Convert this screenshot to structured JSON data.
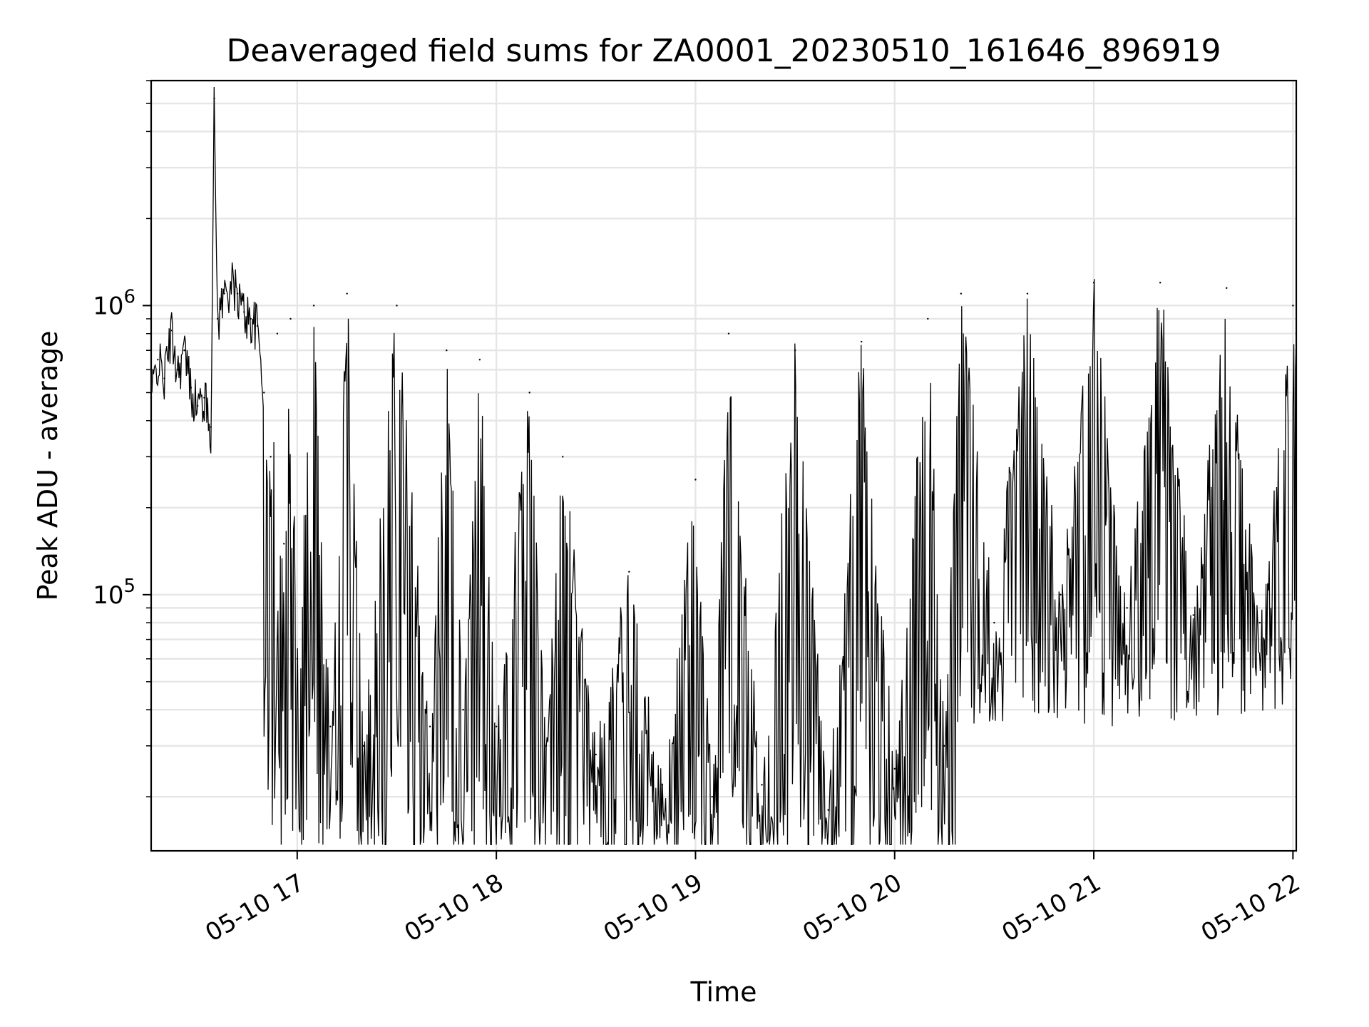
{
  "chart_data": {
    "type": "line",
    "title": "Deaveraged field sums for ZA0001_20230510_161646_896919",
    "xlabel": "Time",
    "ylabel": "Peak ADU - average",
    "xlim": [
      "2023-05-10 16:16",
      "2023-05-10 22:01"
    ],
    "ylim": [
      13000,
      6000000
    ],
    "yscale": "log",
    "grid": true,
    "x_tick_labels": [
      "05-10 17",
      "05-10 18",
      "05-10 19",
      "05-10 20",
      "05-10 21",
      "05-10 22"
    ],
    "y_tick_labels": [
      {
        "base": "10",
        "exp": "5",
        "value": 100000
      },
      {
        "base": "10",
        "exp": "6",
        "value": 1000000
      }
    ],
    "line_color": "#000000",
    "series": [
      {
        "points": [
          [
            "2023-05-10 16:16",
            480000
          ],
          [
            "2023-05-10 16:18",
            650000
          ],
          [
            "2023-05-10 16:20",
            560000
          ],
          [
            "2023-05-10 16:22",
            820000
          ],
          [
            "2023-05-10 16:24",
            600000
          ],
          [
            "2023-05-10 16:26",
            700000
          ],
          [
            "2023-05-10 16:28",
            520000
          ],
          [
            "2023-05-10 16:30",
            450000
          ],
          [
            "2023-05-10 16:32",
            480000
          ],
          [
            "2023-05-10 16:34",
            380000
          ],
          [
            "2023-05-10 16:35",
            5200000
          ],
          [
            "2023-05-10 16:36",
            900000
          ],
          [
            "2023-05-10 16:38",
            1100000
          ],
          [
            "2023-05-10 16:40",
            1200000
          ],
          [
            "2023-05-10 16:42",
            1100000
          ],
          [
            "2023-05-10 16:44",
            950000
          ],
          [
            "2023-05-10 16:46",
            900000
          ],
          [
            "2023-05-10 16:48",
            850000
          ],
          [
            "2023-05-10 16:50",
            500000
          ],
          [
            "2023-05-10 16:52",
            300000
          ],
          [
            "2023-05-10 16:54",
            800000
          ],
          [
            "2023-05-10 16:56",
            150000
          ],
          [
            "2023-05-10 16:58",
            900000
          ],
          [
            "2023-05-10 17:00",
            60000
          ],
          [
            "2023-05-10 17:05",
            1000000
          ],
          [
            "2023-05-10 17:10",
            35000
          ],
          [
            "2023-05-10 17:15",
            1100000
          ],
          [
            "2023-05-10 17:20",
            30000
          ],
          [
            "2023-05-10 17:30",
            1000000
          ],
          [
            "2023-05-10 17:40",
            35000
          ],
          [
            "2023-05-10 17:45",
            700000
          ],
          [
            "2023-05-10 17:50",
            40000
          ],
          [
            "2023-05-10 17:55",
            650000
          ],
          [
            "2023-05-10 18:00",
            35000
          ],
          [
            "2023-05-10 18:10",
            500000
          ],
          [
            "2023-05-10 18:15",
            30000
          ],
          [
            "2023-05-10 18:20",
            300000
          ],
          [
            "2023-05-10 18:30",
            28000
          ],
          [
            "2023-05-10 18:40",
            120000
          ],
          [
            "2023-05-10 18:50",
            22000
          ],
          [
            "2023-05-10 19:00",
            250000
          ],
          [
            "2023-05-10 19:05",
            20000
          ],
          [
            "2023-05-10 19:10",
            800000
          ],
          [
            "2023-05-10 19:20",
            22000
          ],
          [
            "2023-05-10 19:30",
            700000
          ],
          [
            "2023-05-10 19:40",
            18000
          ],
          [
            "2023-05-10 19:50",
            750000
          ],
          [
            "2023-05-10 20:00",
            25000
          ],
          [
            "2023-05-10 20:10",
            900000
          ],
          [
            "2023-05-10 20:15",
            30000
          ],
          [
            "2023-05-10 20:20",
            1100000
          ],
          [
            "2023-05-10 20:30",
            80000
          ],
          [
            "2023-05-10 20:40",
            1100000
          ],
          [
            "2023-05-10 20:50",
            100000
          ],
          [
            "2023-05-10 21:00",
            1200000
          ],
          [
            "2023-05-10 21:10",
            90000
          ],
          [
            "2023-05-10 21:20",
            1200000
          ],
          [
            "2023-05-10 21:30",
            85000
          ],
          [
            "2023-05-10 21:40",
            1150000
          ],
          [
            "2023-05-10 21:50",
            80000
          ],
          [
            "2023-05-10 22:00",
            1000000
          ]
        ]
      }
    ]
  }
}
